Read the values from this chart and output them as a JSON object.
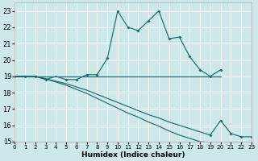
{
  "xlabel": "Humidex (Indice chaleur)",
  "background_color": "#cde8e8",
  "grid_color": "#ffffff",
  "line_color": "#1a6b6b",
  "xlim": [
    0,
    23
  ],
  "ylim": [
    15,
    23.5
  ],
  "yticks": [
    15,
    16,
    17,
    18,
    19,
    20,
    21,
    22,
    23
  ],
  "xticks": [
    0,
    1,
    2,
    3,
    4,
    5,
    6,
    7,
    8,
    9,
    10,
    11,
    12,
    13,
    14,
    15,
    16,
    17,
    18,
    19,
    20,
    21,
    22,
    23
  ],
  "line1_x": [
    0,
    1,
    2,
    3,
    4,
    5,
    6,
    7,
    8,
    9,
    10,
    11,
    12,
    13,
    14,
    15,
    16,
    17,
    18,
    19,
    20
  ],
  "line1_y": [
    19.0,
    19.0,
    19.0,
    18.8,
    19.0,
    18.8,
    18.8,
    19.1,
    19.1,
    20.1,
    23.0,
    22.0,
    21.8,
    22.4,
    23.0,
    21.3,
    21.4,
    20.2,
    19.4,
    19.0,
    19.4
  ],
  "line1_markers_x": [
    0,
    1,
    2,
    3,
    5,
    6,
    7,
    8,
    9,
    10,
    11,
    12,
    13,
    14,
    15,
    16,
    17,
    18,
    19,
    20
  ],
  "line1_markers_y": [
    19.0,
    19.0,
    19.0,
    18.8,
    18.8,
    18.8,
    19.1,
    19.1,
    20.1,
    23.0,
    22.0,
    21.8,
    22.4,
    23.0,
    21.3,
    21.4,
    20.2,
    19.4,
    19.0,
    19.4
  ],
  "line2_x": [
    0,
    20
  ],
  "line2_y": [
    19.0,
    19.0
  ],
  "line3_x": [
    0,
    1,
    2,
    3,
    4,
    5,
    6,
    7,
    8,
    9,
    10,
    11,
    12,
    13,
    14,
    15,
    16,
    17,
    18,
    19,
    20,
    21,
    22,
    23
  ],
  "line3_y": [
    19.0,
    19.0,
    19.0,
    18.85,
    18.7,
    18.55,
    18.35,
    18.15,
    17.9,
    17.65,
    17.4,
    17.15,
    16.9,
    16.65,
    16.45,
    16.2,
    16.0,
    15.8,
    15.6,
    15.4,
    16.3,
    15.5,
    15.3,
    15.3
  ],
  "line3_markers_x": [
    19,
    20,
    21,
    22,
    23
  ],
  "line3_markers_y": [
    15.4,
    16.3,
    15.5,
    15.3,
    15.3
  ],
  "line4_x": [
    0,
    1,
    2,
    3,
    4,
    5,
    6,
    7,
    8,
    9,
    10,
    11,
    12,
    13,
    14,
    15,
    16,
    17,
    18,
    19,
    20,
    21,
    22,
    23
  ],
  "line4_y": [
    19.0,
    19.0,
    19.0,
    18.85,
    18.65,
    18.45,
    18.2,
    17.95,
    17.65,
    17.35,
    17.05,
    16.75,
    16.5,
    16.2,
    15.95,
    15.65,
    15.4,
    15.2,
    15.0,
    14.95,
    null,
    null,
    null,
    null
  ],
  "line4_markers_x": [
    19
  ],
  "line4_markers_y": [
    14.95
  ]
}
